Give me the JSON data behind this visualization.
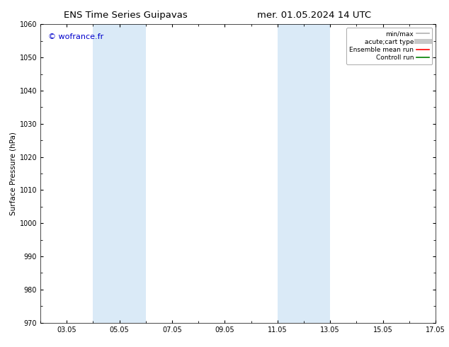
{
  "title_left": "ENS Time Series Guipavas",
  "title_right": "mer. 01.05.2024 14 UTC",
  "ylabel": "Surface Pressure (hPa)",
  "ylim": [
    970,
    1060
  ],
  "yticks": [
    970,
    980,
    990,
    1000,
    1010,
    1020,
    1030,
    1040,
    1050,
    1060
  ],
  "xlim_start": 2.0,
  "xlim_end": 17.0,
  "xtick_positions": [
    3,
    5,
    7,
    9,
    11,
    13,
    15,
    17
  ],
  "xtick_labels": [
    "03.05",
    "05.05",
    "07.05",
    "09.05",
    "11.05",
    "13.05",
    "15.05",
    "17.05"
  ],
  "blue_bands": [
    {
      "xmin": 4.0,
      "xmax": 6.0
    },
    {
      "xmin": 11.0,
      "xmax": 13.0
    }
  ],
  "blue_band_color": "#daeaf7",
  "watermark_text": "© wofrance.fr",
  "watermark_color": "#0000cc",
  "legend_entries": [
    {
      "label": "min/max",
      "color": "#b0b0b0",
      "lw": 1.2,
      "style": "-"
    },
    {
      "label": "acute;cart type",
      "color": "#c8c8c8",
      "lw": 5,
      "style": "-"
    },
    {
      "label": "Ensemble mean run",
      "color": "#ff0000",
      "lw": 1.2,
      "style": "-"
    },
    {
      "label": "Controll run",
      "color": "#008000",
      "lw": 1.2,
      "style": "-"
    }
  ],
  "bg_color": "#ffffff",
  "title_fontsize": 9.5,
  "axis_label_fontsize": 7.5,
  "tick_fontsize": 7,
  "legend_fontsize": 6.5,
  "watermark_fontsize": 8,
  "figsize": [
    6.34,
    4.9
  ],
  "dpi": 100
}
